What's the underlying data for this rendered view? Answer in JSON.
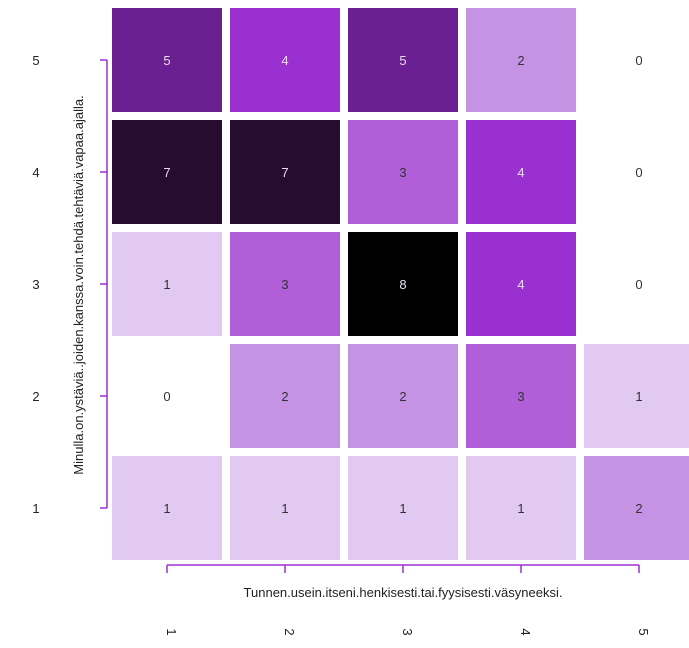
{
  "chart_data": {
    "type": "heatmap",
    "title": "",
    "xlabel": "Tunnen.usein.itseni.henkisesti.tai.fyysisesti.väsyneeksi.",
    "ylabel": "Minulla.on.ystäviä..joiden.kanssa.voin.tehdä.tehtäviä.vapaa.ajalla.",
    "x_categories": [
      "1",
      "2",
      "3",
      "4",
      "5"
    ],
    "y_categories": [
      "1",
      "2",
      "3",
      "4",
      "5"
    ],
    "values": [
      [
        1,
        1,
        1,
        1,
        2
      ],
      [
        0,
        2,
        2,
        3,
        1
      ],
      [
        1,
        3,
        8,
        4,
        0
      ],
      [
        7,
        7,
        3,
        4,
        0
      ],
      [
        5,
        4,
        5,
        2,
        0
      ]
    ],
    "value_note": "values[row][col]; row index 0 = y '1' (bottom), col index 0 = x '1' (left)",
    "color_scale": {
      "0": "#ffffff",
      "1": "#e2c9f2",
      "2": "#c493e4",
      "3": "#b05fd8",
      "4": "#9b30d0",
      "5": "#6a2090",
      "7": "#260c2e",
      "8": "#000000"
    },
    "axis_color": "#9b30d0",
    "grid": false,
    "legend": "none"
  }
}
